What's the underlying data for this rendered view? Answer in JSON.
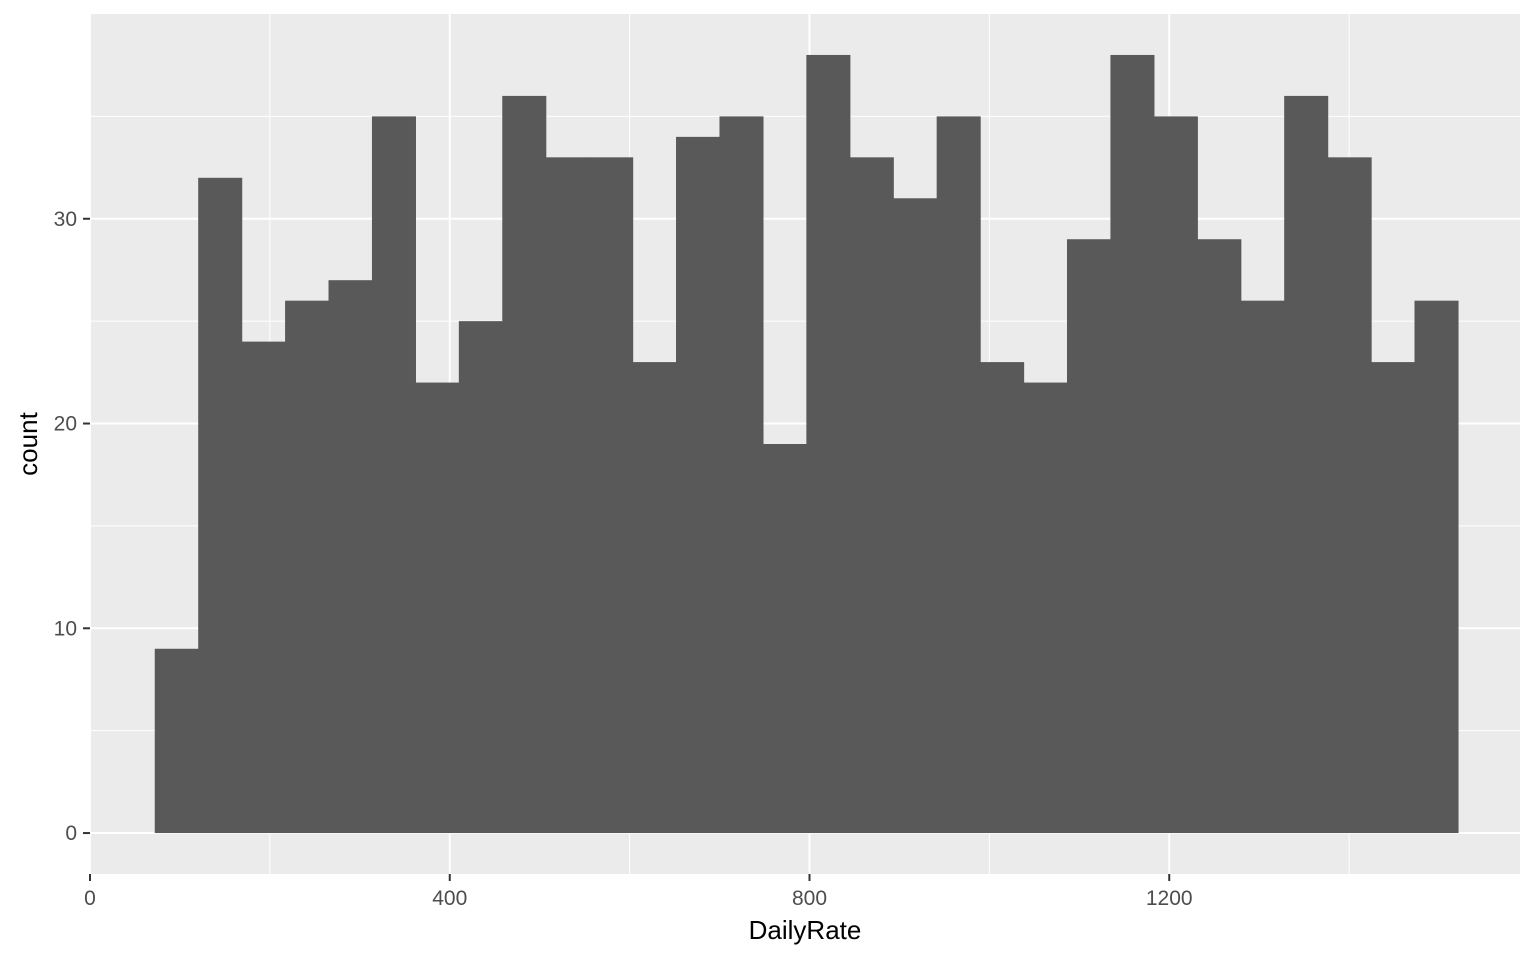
{
  "chart_data": {
    "type": "bar",
    "subtype": "histogram",
    "xlabel": "DailyRate",
    "ylabel": "count",
    "xlim": [
      0,
      1590
    ],
    "ylim": [
      -2,
      40
    ],
    "x_ticks": [
      0,
      400,
      800,
      1200
    ],
    "y_ticks": [
      0,
      10,
      20,
      30
    ],
    "grid": true,
    "legend": "none",
    "bin_width": 48.3,
    "first_bin_start": 72,
    "values": [
      9,
      32,
      24,
      26,
      27,
      35,
      22,
      25,
      36,
      33,
      33,
      23,
      34,
      35,
      19,
      38,
      33,
      31,
      35,
      23,
      22,
      29,
      38,
      35,
      29,
      26,
      36,
      33,
      23,
      26
    ],
    "colors": {
      "panel_background": "#ebebeb",
      "grid_major": "#ffffff",
      "bar_fill": "#595959",
      "tick_color": "#333333",
      "tick_label": "#4d4d4d"
    }
  }
}
